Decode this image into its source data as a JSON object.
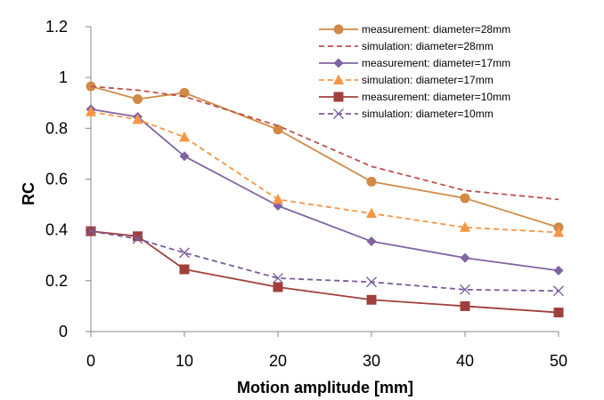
{
  "chart_data": {
    "type": "line",
    "title": "",
    "xlabel": "Motion amplitude [mm]",
    "ylabel": "RC",
    "x": [
      0,
      5,
      10,
      20,
      30,
      40,
      50
    ],
    "xticks": [
      "0",
      "10",
      "20",
      "30",
      "40",
      "50"
    ],
    "xlim": [
      0,
      50
    ],
    "ylim": [
      0,
      1.2
    ],
    "yticks": [
      "0",
      "0.2",
      "0.4",
      "0.6",
      "0.8",
      "1",
      "1.2"
    ],
    "grid": false,
    "legend_position": "top-right",
    "series": [
      {
        "name": "measurement: diameter=28mm",
        "color": "#d08a46",
        "dash": false,
        "marker": "circle",
        "values": [
          0.965,
          0.915,
          0.94,
          0.795,
          0.59,
          0.525,
          0.41
        ]
      },
      {
        "name": "simulation: diameter=28mm",
        "color": "#c0504d",
        "dash": true,
        "marker": "none",
        "values": [
          0.965,
          0.95,
          0.925,
          0.81,
          0.65,
          0.555,
          0.52
        ]
      },
      {
        "name": "measurement: diameter=17mm",
        "color": "#8064a2",
        "dash": false,
        "marker": "diamond",
        "values": [
          0.875,
          0.845,
          0.69,
          0.495,
          0.355,
          0.29,
          0.24
        ]
      },
      {
        "name": "simulation: diameter=17mm",
        "color": "#f79646",
        "dash": true,
        "marker": "triangle",
        "values": [
          0.865,
          0.835,
          0.765,
          0.52,
          0.465,
          0.41,
          0.39
        ]
      },
      {
        "name": "measurement: diameter=10mm",
        "color": "#a0403c",
        "dash": false,
        "marker": "square",
        "values": [
          0.395,
          0.375,
          0.245,
          0.175,
          0.125,
          0.1,
          0.075
        ]
      },
      {
        "name": "simulation: diameter=10mm",
        "color": "#7a5c9a",
        "dash": true,
        "marker": "x",
        "values": [
          0.395,
          0.365,
          0.31,
          0.21,
          0.195,
          0.165,
          0.16
        ]
      }
    ]
  }
}
